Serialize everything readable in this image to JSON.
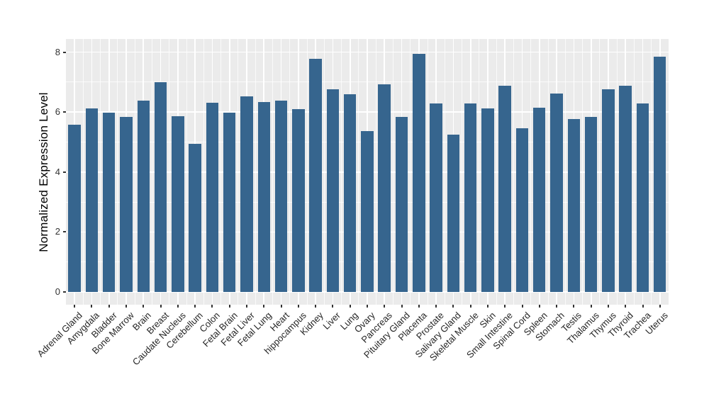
{
  "chart_data": {
    "type": "bar",
    "title": "",
    "xlabel": "",
    "ylabel": "Normalized Expression Level",
    "categories": [
      "Adrenal Gland",
      "Amygdala",
      "Bladder",
      "Bone Marrow",
      "Brain",
      "Breast",
      "Caudate Nucleus",
      "Cerebellum",
      "Colon",
      "Fetal Brain",
      "Fetal Liver",
      "Fetal Lung",
      "Heart",
      "hippocampus",
      "Kidney",
      "Liver",
      "Lung",
      "Ovary",
      "Pancreas",
      "Pituitary Gland",
      "Placenta",
      "Prostate",
      "Salivary Gland",
      "Skeletal Muscle",
      "Skin",
      "Small Intestine",
      "Spinal Cord",
      "Spleen",
      "Stomach",
      "Testis",
      "Thalamus",
      "Thymus",
      "Thyroid",
      "Trachea",
      "Uterus"
    ],
    "values": [
      5.59,
      6.13,
      5.98,
      5.85,
      6.39,
      6.99,
      5.86,
      4.93,
      6.31,
      5.99,
      6.53,
      6.34,
      6.38,
      6.1,
      7.77,
      6.75,
      6.59,
      5.37,
      6.93,
      5.83,
      7.95,
      6.28,
      5.24,
      6.28,
      6.13,
      6.89,
      5.45,
      6.14,
      6.61,
      5.77,
      5.83,
      6.77,
      6.87,
      6.28,
      7.86
    ],
    "ylim": [
      0,
      8.4
    ],
    "yticks": [
      0,
      2,
      4,
      6,
      8
    ],
    "yticks_minor": [
      1,
      3,
      5,
      7
    ],
    "x_tick_rotation_deg": 45,
    "grid": "horizontal and vertical white gridlines (major + minor) on gray panel",
    "legend": "none",
    "colors": {
      "bar_fill": "#36658E",
      "panel_background": "#EBEBEB",
      "gridline": "#FFFFFF",
      "tick_mark": "#333333",
      "tick_label": "#262626",
      "axis_title": "#000000",
      "figure_background": "#FFFFFF"
    }
  }
}
